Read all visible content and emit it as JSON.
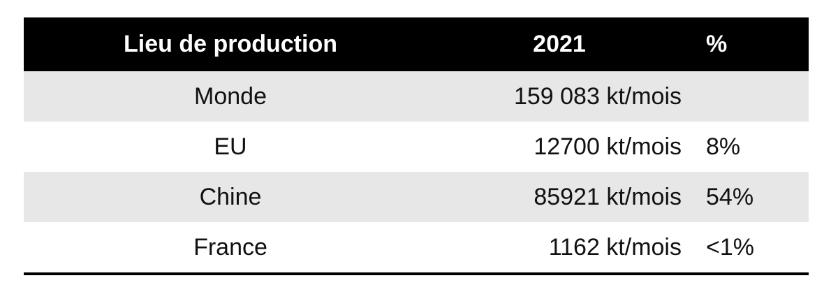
{
  "table": {
    "headers": [
      "Lieu de production",
      "2021",
      "%"
    ],
    "rows": [
      {
        "place": "Monde",
        "value": "159 083 kt/mois",
        "percent": ""
      },
      {
        "place": "EU",
        "value": "12700 kt/mois",
        "percent": "8%"
      },
      {
        "place": "Chine",
        "value": "85921 kt/mois",
        "percent": "54%"
      },
      {
        "place": "France",
        "value": "1162 kt/mois",
        "percent": "<1%"
      }
    ]
  },
  "colors": {
    "header_bg": "#000000",
    "header_text": "#ffffff",
    "shaded_row": "#e7e7e7"
  }
}
